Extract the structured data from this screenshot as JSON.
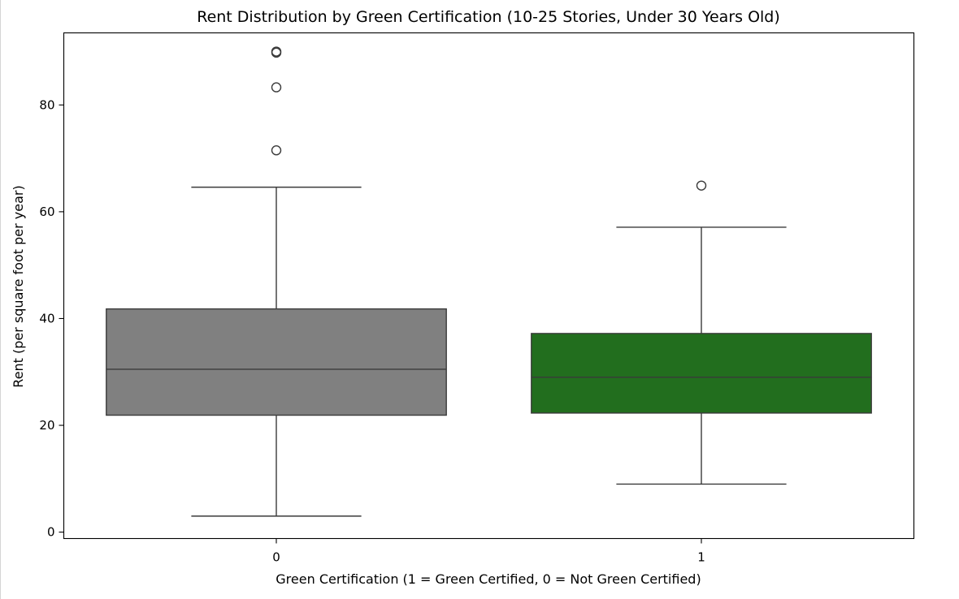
{
  "chart_data": {
    "type": "box",
    "title": "Rent Distribution by Green Certification (10-25 Stories, Under 30 Years Old)",
    "xlabel": "Green Certification (1 = Green Certified, 0 = Not Green Certified)",
    "ylabel": "Rent (per square foot per year)",
    "categories": [
      "0",
      "1"
    ],
    "ylim": [
      -1.2,
      93.5
    ],
    "yticks": [
      0,
      20,
      40,
      60,
      80
    ],
    "grid": false,
    "boxes": [
      {
        "category": "0",
        "color": "#808080",
        "whisker_low": 3.0,
        "q1": 21.9,
        "median": 30.5,
        "q3": 41.8,
        "whisker_high": 64.6,
        "outliers": [
          71.5,
          83.3,
          89.8,
          90.0
        ]
      },
      {
        "category": "1",
        "color": "#226e1e",
        "whisker_low": 9.0,
        "q1": 22.3,
        "median": 29.0,
        "q3": 37.2,
        "whisker_high": 57.1,
        "outliers": [
          64.9
        ]
      }
    ]
  }
}
